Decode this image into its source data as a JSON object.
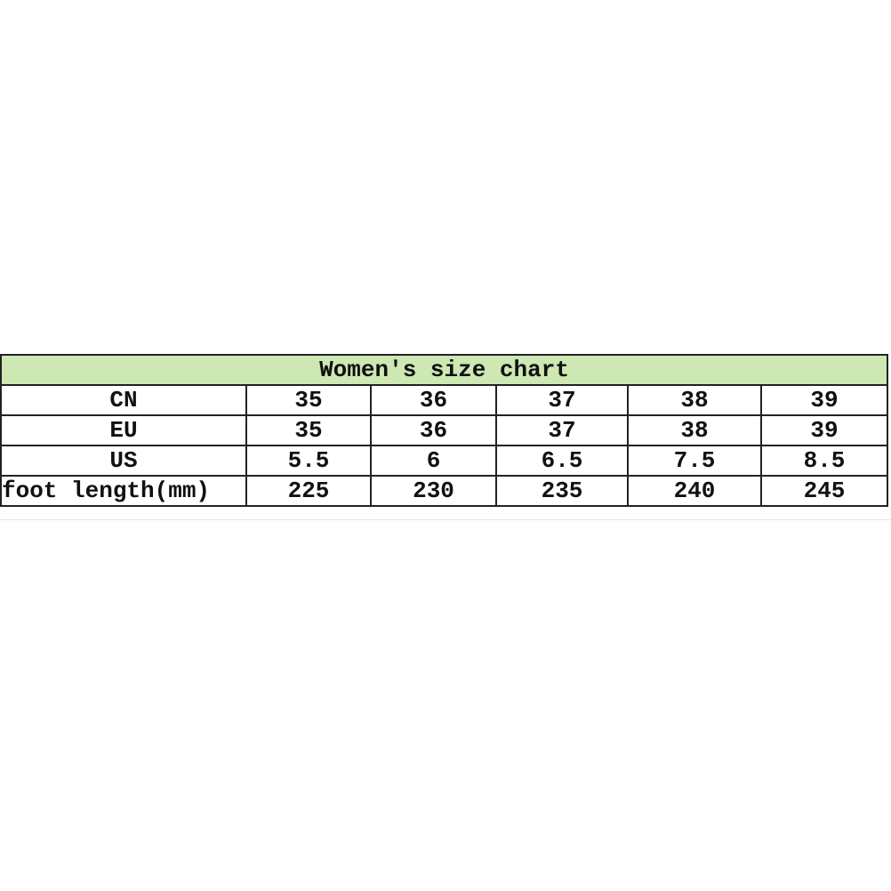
{
  "title": "Women's size chart",
  "header_fill": "#cde8b3",
  "rows": [
    {
      "label": "CN",
      "values": [
        "35",
        "36",
        "37",
        "38",
        "39"
      ]
    },
    {
      "label": "EU",
      "values": [
        "35",
        "36",
        "37",
        "38",
        "39"
      ]
    },
    {
      "label": "US",
      "values": [
        "5.5",
        "6",
        "6.5",
        "7.5",
        "8.5"
      ]
    },
    {
      "label": "foot length(mm)",
      "values": [
        "225",
        "230",
        "235",
        "240",
        "245"
      ]
    }
  ]
}
